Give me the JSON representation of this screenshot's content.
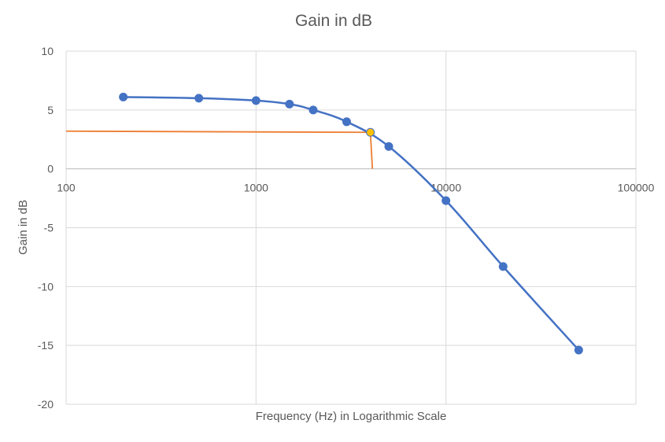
{
  "chart_data": {
    "type": "scatter",
    "title": "Gain in dB",
    "xlabel": "Frequency (Hz) in Logarithmic Scale",
    "ylabel": "Gain in dB",
    "xscale": "log",
    "xlim": [
      100,
      100000
    ],
    "ylim": [
      -20,
      10
    ],
    "x_ticks": [
      "100",
      "1000",
      "10000",
      "100000"
    ],
    "y_ticks": [
      "10",
      "5",
      "0",
      "-5",
      "-10",
      "-15",
      "-20"
    ],
    "grid": true,
    "legend": "none",
    "series": [
      {
        "color": "#4472c4",
        "style": "smooth line with markers",
        "x": [
          200,
          500,
          1000,
          1500,
          2000,
          3000,
          5000,
          10000,
          20000,
          50000
        ],
        "y": [
          6.1,
          6.0,
          5.8,
          5.5,
          5.0,
          4.0,
          1.9,
          -2.7,
          -8.3,
          -15.4
        ]
      }
    ],
    "annotations": [
      {
        "type": "cutoff-marker",
        "point": {
          "x": 4000,
          "y": 3.1
        },
        "point_color": "#ffc000",
        "line_color": "#ed7d31",
        "horizontal_line_left_y": 3.2,
        "vertical_line_bottom_x": 4100
      }
    ]
  }
}
